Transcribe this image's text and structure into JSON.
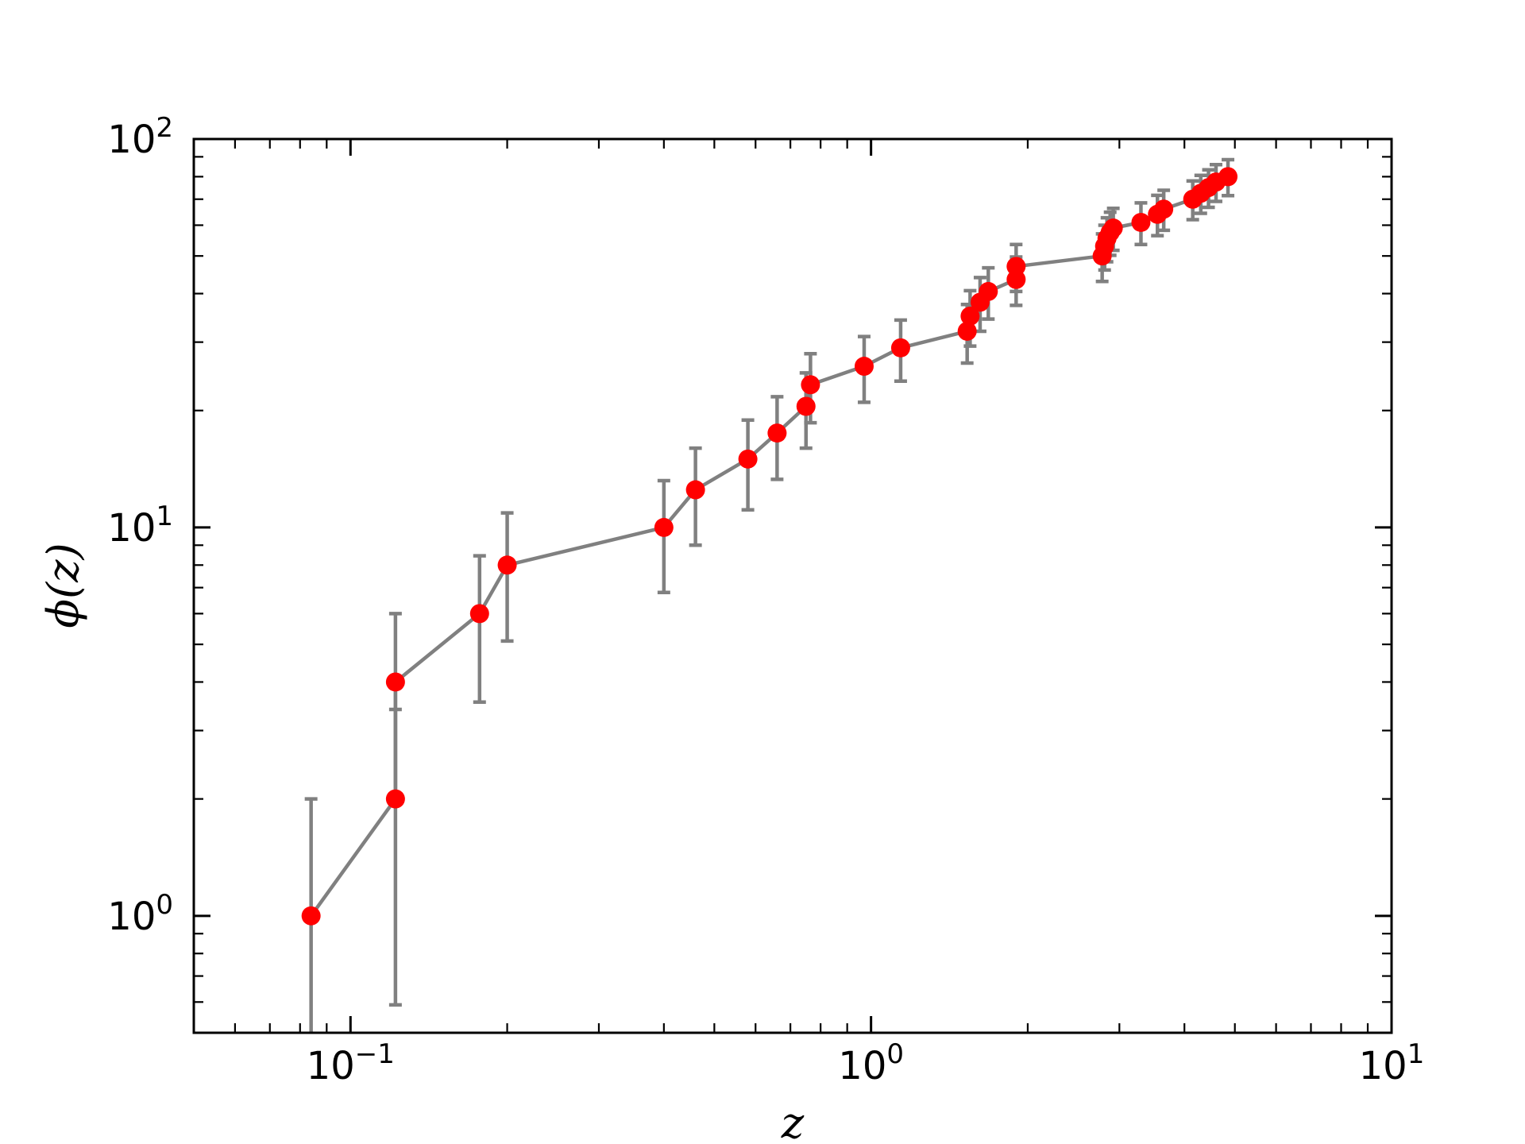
{
  "chart_data": {
    "type": "scatter",
    "title": "",
    "xlabel": "z",
    "ylabel": "ϕ(z)",
    "xscale": "log",
    "yscale": "log",
    "xlim": [
      0.05,
      10
    ],
    "ylim": [
      0.5,
      100
    ],
    "grid": false,
    "legend": "none",
    "x_tick_labels": [
      {
        "value": 0.1,
        "base": "10",
        "exp": "−1"
      },
      {
        "value": 1,
        "base": "10",
        "exp": "0"
      },
      {
        "value": 10,
        "base": "10",
        "exp": "1"
      }
    ],
    "y_tick_labels": [
      {
        "value": 1,
        "base": "10",
        "exp": "0"
      },
      {
        "value": 10,
        "base": "10",
        "exp": "1"
      },
      {
        "value": 100,
        "base": "10",
        "exp": "2"
      }
    ],
    "series": [
      {
        "marker_color": "#ff0000",
        "line_color": "#808080",
        "points": [
          {
            "x": 0.084,
            "y": 1.0,
            "ylo": 0.0,
            "yhi": 2.0
          },
          {
            "x": 0.122,
            "y": 2.0,
            "ylo": 0.59,
            "yhi": 3.4
          },
          {
            "x": 0.122,
            "y": 4.0,
            "ylo": 2.0,
            "yhi": 6.0
          },
          {
            "x": 0.177,
            "y": 6.0,
            "ylo": 3.55,
            "yhi": 8.45
          },
          {
            "x": 0.2,
            "y": 8.0,
            "ylo": 5.1,
            "yhi": 10.9
          },
          {
            "x": 0.4,
            "y": 10.0,
            "ylo": 6.8,
            "yhi": 13.2
          },
          {
            "x": 0.46,
            "y": 12.5,
            "ylo": 9.0,
            "yhi": 16.0
          },
          {
            "x": 0.58,
            "y": 15.0,
            "ylo": 11.1,
            "yhi": 18.9
          },
          {
            "x": 0.66,
            "y": 17.5,
            "ylo": 13.3,
            "yhi": 21.7
          },
          {
            "x": 0.75,
            "y": 20.5,
            "ylo": 16.0,
            "yhi": 25.0
          },
          {
            "x": 0.765,
            "y": 23.3,
            "ylo": 18.6,
            "yhi": 28.0
          },
          {
            "x": 0.97,
            "y": 26.0,
            "ylo": 21.0,
            "yhi": 31.0
          },
          {
            "x": 1.14,
            "y": 29.0,
            "ylo": 23.8,
            "yhi": 34.2
          },
          {
            "x": 1.53,
            "y": 32.0,
            "ylo": 26.5,
            "yhi": 37.5
          },
          {
            "x": 1.55,
            "y": 35.0,
            "ylo": 29.3,
            "yhi": 40.7
          },
          {
            "x": 1.62,
            "y": 38.0,
            "ylo": 32.0,
            "yhi": 44.0
          },
          {
            "x": 1.68,
            "y": 40.5,
            "ylo": 34.4,
            "yhi": 46.6
          },
          {
            "x": 1.9,
            "y": 43.5,
            "ylo": 37.3,
            "yhi": 49.7
          },
          {
            "x": 1.9,
            "y": 47.0,
            "ylo": 40.5,
            "yhi": 53.5
          },
          {
            "x": 2.78,
            "y": 50.0,
            "ylo": 43.0,
            "yhi": 57.0
          },
          {
            "x": 2.81,
            "y": 53.0,
            "ylo": 46.0,
            "yhi": 60.0
          },
          {
            "x": 2.84,
            "y": 55.5,
            "ylo": 48.3,
            "yhi": 62.7
          },
          {
            "x": 2.88,
            "y": 57.5,
            "ylo": 50.2,
            "yhi": 64.8
          },
          {
            "x": 2.92,
            "y": 59.0,
            "ylo": 51.7,
            "yhi": 66.3
          },
          {
            "x": 3.3,
            "y": 61.0,
            "ylo": 53.5,
            "yhi": 68.5
          },
          {
            "x": 3.55,
            "y": 64.0,
            "ylo": 56.4,
            "yhi": 71.6
          },
          {
            "x": 3.65,
            "y": 66.0,
            "ylo": 58.2,
            "yhi": 73.8
          },
          {
            "x": 4.15,
            "y": 70.0,
            "ylo": 62.0,
            "yhi": 78.0
          },
          {
            "x": 4.3,
            "y": 72.5,
            "ylo": 64.4,
            "yhi": 80.6
          },
          {
            "x": 4.45,
            "y": 75.0,
            "ylo": 66.7,
            "yhi": 83.3
          },
          {
            "x": 4.6,
            "y": 77.5,
            "ylo": 69.1,
            "yhi": 85.9
          },
          {
            "x": 4.85,
            "y": 80.0,
            "ylo": 71.5,
            "yhi": 88.5
          }
        ]
      }
    ]
  }
}
